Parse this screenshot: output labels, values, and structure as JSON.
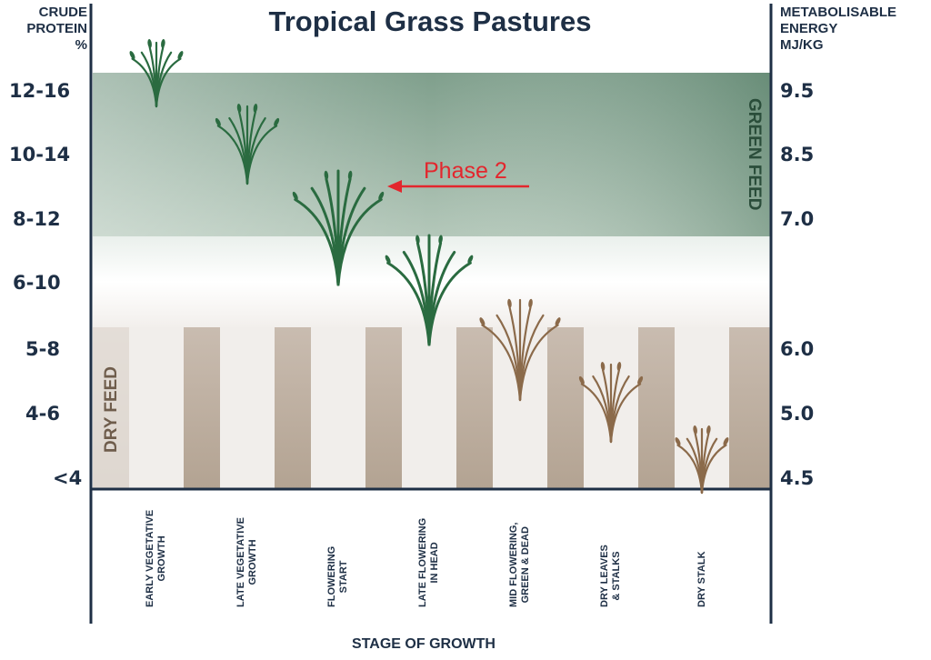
{
  "chart_data": {
    "type": "scatter",
    "title": "Tropical Grass Pastures",
    "ylabel_left": [
      "CRUDE",
      "PROTEIN",
      "%"
    ],
    "ylabel_right": [
      "METABOLISABLE",
      "ENERGY",
      "MJ/KG"
    ],
    "xlabel": "STAGE OF GROWTH",
    "left_ticks": [
      "12-16",
      "10-14",
      "8-12",
      "6-10",
      "5-8",
      "4-6",
      "<4"
    ],
    "right_ticks": [
      "9.5",
      "8.5",
      "7.0",
      "6.0",
      "5.0",
      "4.5"
    ],
    "categories": [
      [
        "EARLY VEGETATIVE",
        "GROWTH"
      ],
      [
        "LATE VEGETATIVE",
        "GROWTH"
      ],
      [
        "FLOWERING",
        "START"
      ],
      [
        "LATE FLOWERING",
        "IN HEAD"
      ],
      [
        "MID FLOWERING,",
        "GREEN & DEAD"
      ],
      [
        "DRY LEAVES",
        "& STALKS"
      ],
      [
        "DRY STALK"
      ]
    ],
    "points": [
      {
        "stage": "EARLY VEGETATIVE GROWTH",
        "crude_protein": "12-16",
        "metabolisable_energy": 9.5,
        "feed": "green"
      },
      {
        "stage": "LATE VEGETATIVE GROWTH",
        "crude_protein": "10-14",
        "metabolisable_energy": 8.5,
        "feed": "green"
      },
      {
        "stage": "FLOWERING START",
        "crude_protein": "8-12",
        "metabolisable_energy": 7.0,
        "feed": "green"
      },
      {
        "stage": "LATE FLOWERING IN HEAD",
        "crude_protein": "6-10",
        "metabolisable_energy": 6.5,
        "feed": "green"
      },
      {
        "stage": "MID FLOWERING, GREEN & DEAD",
        "crude_protein": "5-8",
        "metabolisable_energy": 6.0,
        "feed": "dry"
      },
      {
        "stage": "DRY LEAVES & STALKS",
        "crude_protein": "4-6",
        "metabolisable_energy": 5.0,
        "feed": "dry"
      },
      {
        "stage": "DRY STALK",
        "crude_protein": "<4",
        "metabolisable_energy": 4.5,
        "feed": "dry"
      }
    ],
    "zones": [
      {
        "label": "GREEN FEED",
        "color": "#5f8a72"
      },
      {
        "label": "DRY FEED",
        "color": "#8b7864"
      }
    ],
    "annotation": {
      "text": "Phase 2",
      "points_to": "FLOWERING START",
      "color": "#e3262d"
    },
    "colors": {
      "axis": "#1e2f45",
      "green_plant": "#2a6b40",
      "dry_plant": "#8b6a4a"
    }
  }
}
